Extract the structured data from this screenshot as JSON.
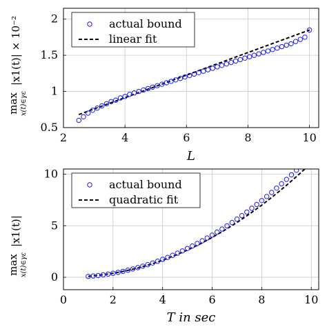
{
  "chart_data": [
    {
      "type": "scatter",
      "xlabel": "L",
      "ylabel": {
        "main": "max",
        "sub": "x(t)∈γε",
        "expr": "|x1(t)| × 10⁻²"
      },
      "xlim": [
        2,
        10.3
      ],
      "ylim": [
        0.5,
        2.15
      ],
      "xticks": [
        "2",
        "4",
        "6",
        "8",
        "10"
      ],
      "xtick_values": [
        2,
        4,
        6,
        8,
        10
      ],
      "yticks": [
        "0.5",
        "1",
        "1.5",
        "2"
      ],
      "ytick_values": [
        0.5,
        1,
        1.5,
        2
      ],
      "grid": true,
      "legend_position": "top-left",
      "colors": {
        "marker": "#1a1aff",
        "fit": "#000000"
      },
      "series": [
        {
          "name": "actual bound",
          "style": "markers",
          "x": [
            2.5,
            2.65,
            2.8,
            2.95,
            3.1,
            3.25,
            3.4,
            3.55,
            3.7,
            3.85,
            4.0,
            4.15,
            4.3,
            4.45,
            4.6,
            4.75,
            4.9,
            5.05,
            5.2,
            5.35,
            5.5,
            5.65,
            5.8,
            5.95,
            6.1,
            6.25,
            6.4,
            6.55,
            6.7,
            6.85,
            7.0,
            7.15,
            7.3,
            7.45,
            7.6,
            7.75,
            7.9,
            8.05,
            8.2,
            8.35,
            8.5,
            8.65,
            8.8,
            8.95,
            9.1,
            9.25,
            9.4,
            9.55,
            9.7,
            9.85,
            10.0
          ],
          "y": [
            0.6,
            0.65,
            0.7,
            0.74,
            0.77,
            0.8,
            0.83,
            0.86,
            0.88,
            0.91,
            0.93,
            0.96,
            0.98,
            1.0,
            1.02,
            1.04,
            1.06,
            1.08,
            1.1,
            1.12,
            1.14,
            1.16,
            1.18,
            1.2,
            1.22,
            1.24,
            1.26,
            1.28,
            1.3,
            1.32,
            1.34,
            1.36,
            1.38,
            1.4,
            1.42,
            1.44,
            1.46,
            1.48,
            1.5,
            1.52,
            1.54,
            1.56,
            1.58,
            1.6,
            1.62,
            1.64,
            1.66,
            1.69,
            1.72,
            1.75,
            1.85
          ]
        },
        {
          "name": "linear fit",
          "style": "dashed",
          "x": [
            2.5,
            10.0
          ],
          "y": [
            0.68,
            1.85
          ]
        }
      ]
    },
    {
      "type": "scatter",
      "xlabel": "T in sec",
      "ylabel": {
        "main": "max",
        "sub": "x(t)∈γε",
        "expr": "|x1(t)|"
      },
      "xlim": [
        0,
        10.3
      ],
      "ylim": [
        -1.2,
        10.5
      ],
      "xticks": [
        "0",
        "2",
        "4",
        "6",
        "8",
        "10"
      ],
      "xtick_values": [
        0,
        2,
        4,
        6,
        8,
        10
      ],
      "yticks": [
        "0",
        "5",
        "10"
      ],
      "ytick_values": [
        0,
        5,
        10
      ],
      "grid": true,
      "legend_position": "top-left",
      "colors": {
        "marker": "#1a1aff",
        "fit": "#000000"
      },
      "series": [
        {
          "name": "actual bound",
          "style": "markers",
          "x": [
            1.0,
            1.2,
            1.4,
            1.6,
            1.8,
            2.0,
            2.2,
            2.4,
            2.6,
            2.8,
            3.0,
            3.2,
            3.4,
            3.6,
            3.8,
            4.0,
            4.2,
            4.4,
            4.6,
            4.8,
            5.0,
            5.2,
            5.4,
            5.6,
            5.8,
            6.0,
            6.2,
            6.4,
            6.6,
            6.8,
            7.0,
            7.2,
            7.4,
            7.6,
            7.8,
            8.0,
            8.2,
            8.4,
            8.6,
            8.8,
            9.0,
            9.2,
            9.4,
            9.6,
            9.8,
            10.0
          ],
          "y": [
            0.09,
            0.13,
            0.18,
            0.24,
            0.31,
            0.39,
            0.48,
            0.58,
            0.69,
            0.81,
            0.94,
            1.08,
            1.23,
            1.39,
            1.56,
            1.74,
            1.93,
            2.13,
            2.34,
            2.56,
            2.79,
            3.03,
            3.28,
            3.54,
            3.81,
            4.09,
            4.38,
            4.68,
            4.99,
            5.31,
            5.64,
            5.98,
            6.33,
            6.69,
            7.06,
            7.44,
            7.83,
            8.23,
            8.64,
            9.06,
            9.49,
            9.93,
            10.38,
            10.84,
            11.31,
            11.79
          ]
        },
        {
          "name": "quadratic fit",
          "style": "dashed",
          "x": [
            1.0,
            1.5,
            2.0,
            2.5,
            3.0,
            3.5,
            4.0,
            4.5,
            5.0,
            5.5,
            6.0,
            6.5,
            7.0,
            7.5,
            8.0,
            8.5,
            9.0,
            9.5,
            10.0
          ],
          "y": [
            0.1,
            0.22,
            0.39,
            0.62,
            0.9,
            1.25,
            1.65,
            2.12,
            2.64,
            3.22,
            3.86,
            4.56,
            5.31,
            6.13,
            7.0,
            7.93,
            8.92,
            9.97,
            11.08
          ]
        }
      ]
    }
  ]
}
